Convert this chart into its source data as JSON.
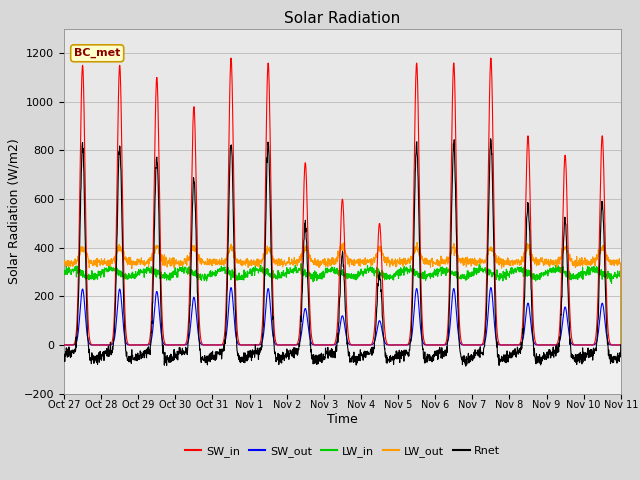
{
  "title": "Solar Radiation",
  "xlabel": "Time",
  "ylabel": "Solar Radiation (W/m2)",
  "ylim": [
    -200,
    1300
  ],
  "yticks": [
    -200,
    0,
    200,
    400,
    600,
    800,
    1000,
    1200
  ],
  "bg_color": "#d8d8d8",
  "ax_color": "#f0f0f0",
  "annotation_text": "BC_met",
  "annotation_bg": "#ffffcc",
  "annotation_edge": "#cc9900",
  "colors": {
    "SW_in": "#ff0000",
    "SW_out": "#0000ff",
    "LW_in": "#00cc00",
    "LW_out": "#ff9900",
    "Rnet": "#000000"
  },
  "xtick_labels": [
    "Oct 27",
    "Oct 28",
    "Oct 29",
    "Oct 30",
    "Oct 31",
    "Nov 1",
    "Nov 2",
    "Nov 3",
    "Nov 4",
    "Nov 5",
    "Nov 6",
    "Nov 7",
    "Nov 8",
    "Nov 9",
    "Nov 10",
    "Nov 11"
  ],
  "num_days": 15,
  "pts_per_day": 144,
  "SW_in_peaks": [
    1150,
    1150,
    1100,
    980,
    1180,
    1160,
    750,
    600,
    500,
    1160,
    1160,
    1180,
    860,
    780,
    860
  ],
  "night_rnet": -60
}
